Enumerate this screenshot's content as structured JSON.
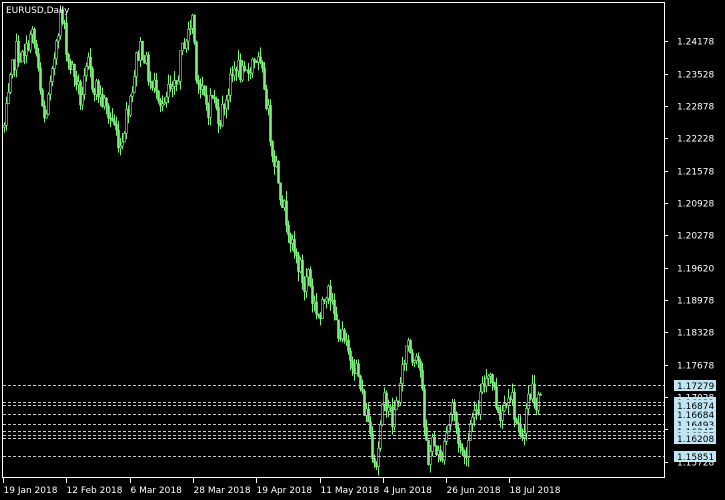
{
  "title": "EURUSD,Daily",
  "colors": {
    "background": "#000000",
    "frame": "#ffffff",
    "candle": "#7cf27c",
    "hline": "#c8c8c8",
    "price_box": "#bfe6f2"
  },
  "chart_data": {
    "type": "candlestick",
    "title": "EURUSD,Daily",
    "grid": false,
    "ylim": [
      1.154,
      1.2495
    ],
    "y_ticks": [
      1.24178,
      1.23528,
      1.22878,
      1.22228,
      1.21578,
      1.20928,
      1.20278,
      1.1962,
      1.18978,
      1.18328,
      1.17678,
      1.17028,
      1.16378,
      1.15728
    ],
    "x_tick_labels": [
      "19 Jan 2018",
      "12 Feb 2018",
      "6 Mar 2018",
      "28 Mar 2018",
      "19 Apr 2018",
      "11 May 2018",
      "4 Jun 2018",
      "26 Jun 2018",
      "18 Jul 2018"
    ],
    "price_levels": [
      1.17279,
      1.16932,
      1.16874,
      1.16684,
      1.16493,
      1.16345,
      1.16257,
      1.16208,
      1.15851
    ],
    "price_level_labels": [
      "1.17279",
      "1.16932",
      "1.16874",
      "1.16684",
      "1.16493",
      "1.16345",
      "1.16257",
      "1.16208",
      "1.15851"
    ],
    "close_path": [
      [
        0,
        1.2245
      ],
      [
        4,
        1.23
      ],
      [
        8,
        1.236
      ],
      [
        12,
        1.24
      ],
      [
        16,
        1.239
      ],
      [
        20,
        1.238
      ],
      [
        24,
        1.242
      ],
      [
        28,
        1.243
      ],
      [
        32,
        1.239
      ],
      [
        36,
        1.231
      ],
      [
        40,
        1.226
      ],
      [
        44,
        1.23
      ],
      [
        48,
        1.2345
      ],
      [
        52,
        1.243
      ],
      [
        56,
        1.247
      ],
      [
        60,
        1.244
      ],
      [
        64,
        1.238
      ],
      [
        68,
        1.236
      ],
      [
        72,
        1.234
      ],
      [
        76,
        1.23
      ],
      [
        80,
        1.233
      ],
      [
        84,
        1.237
      ],
      [
        88,
        1.2335
      ],
      [
        92,
        1.2325
      ],
      [
        96,
        1.2305
      ],
      [
        100,
        1.229
      ],
      [
        104,
        1.227
      ],
      [
        108,
        1.226
      ],
      [
        112,
        1.2235
      ],
      [
        116,
        1.221
      ],
      [
        120,
        1.225
      ],
      [
        124,
        1.229
      ],
      [
        128,
        1.233
      ],
      [
        132,
        1.238
      ],
      [
        136,
        1.241
      ],
      [
        140,
        1.239
      ],
      [
        144,
        1.235
      ],
      [
        148,
        1.232
      ],
      [
        152,
        1.2335
      ],
      [
        156,
        1.23
      ],
      [
        160,
        1.228
      ],
      [
        164,
        1.232
      ],
      [
        168,
        1.231
      ],
      [
        172,
        1.233
      ],
      [
        176,
        1.238
      ],
      [
        180,
        1.242
      ],
      [
        184,
        1.243
      ],
      [
        188,
        1.247
      ],
      [
        192,
        1.236
      ],
      [
        196,
        1.232
      ],
      [
        200,
        1.23
      ],
      [
        204,
        1.2285
      ],
      [
        208,
        1.231
      ],
      [
        212,
        1.228
      ],
      [
        216,
        1.2265
      ],
      [
        220,
        1.2295
      ],
      [
        224,
        1.232
      ],
      [
        228,
        1.2345
      ],
      [
        232,
        1.2375
      ],
      [
        236,
        1.2355
      ],
      [
        240,
        1.234
      ],
      [
        244,
        1.236
      ],
      [
        248,
        1.238
      ],
      [
        252,
        1.2385
      ],
      [
        256,
        1.236
      ],
      [
        260,
        1.233
      ],
      [
        264,
        1.227
      ],
      [
        268,
        1.22
      ],
      [
        272,
        1.217
      ],
      [
        276,
        1.212
      ],
      [
        280,
        1.208
      ],
      [
        284,
        1.205
      ],
      [
        288,
        1.2
      ],
      [
        292,
        1.198
      ],
      [
        296,
        1.196
      ],
      [
        300,
        1.192
      ],
      [
        304,
        1.196
      ],
      [
        308,
        1.19
      ],
      [
        312,
        1.188
      ],
      [
        316,
        1.186
      ],
      [
        320,
        1.19
      ],
      [
        324,
        1.194
      ],
      [
        328,
        1.188
      ],
      [
        332,
        1.185
      ],
      [
        336,
        1.183
      ],
      [
        340,
        1.181
      ],
      [
        344,
        1.179
      ],
      [
        348,
        1.178
      ],
      [
        352,
        1.176
      ],
      [
        356,
        1.172
      ],
      [
        360,
        1.168
      ],
      [
        364,
        1.166
      ],
      [
        368,
        1.16
      ],
      [
        372,
        1.157
      ],
      [
        376,
        1.164
      ],
      [
        380,
        1.17
      ],
      [
        384,
        1.169
      ],
      [
        388,
        1.165
      ],
      [
        392,
        1.169
      ],
      [
        396,
        1.172
      ],
      [
        400,
        1.178
      ],
      [
        404,
        1.182
      ],
      [
        408,
        1.178
      ],
      [
        412,
        1.18
      ],
      [
        416,
        1.176
      ],
      [
        420,
        1.164
      ],
      [
        424,
        1.158
      ],
      [
        428,
        1.161
      ],
      [
        432,
        1.16
      ],
      [
        436,
        1.157
      ],
      [
        440,
        1.162
      ],
      [
        444,
        1.165
      ],
      [
        448,
        1.169
      ],
      [
        452,
        1.164
      ],
      [
        456,
        1.16
      ],
      [
        460,
        1.158
      ],
      [
        464,
        1.162
      ],
      [
        468,
        1.168
      ],
      [
        472,
        1.166
      ],
      [
        476,
        1.17
      ],
      [
        480,
        1.173
      ],
      [
        484,
        1.176
      ],
      [
        488,
        1.174
      ],
      [
        492,
        1.169
      ],
      [
        496,
        1.167
      ],
      [
        500,
        1.169
      ],
      [
        504,
        1.172
      ],
      [
        508,
        1.17
      ],
      [
        512,
        1.165
      ],
      [
        516,
        1.161
      ],
      [
        520,
        1.165
      ],
      [
        524,
        1.17
      ],
      [
        528,
        1.172
      ],
      [
        532,
        1.169
      ],
      [
        536,
        1.171
      ],
      [
        540,
        1.164
      ]
    ]
  }
}
